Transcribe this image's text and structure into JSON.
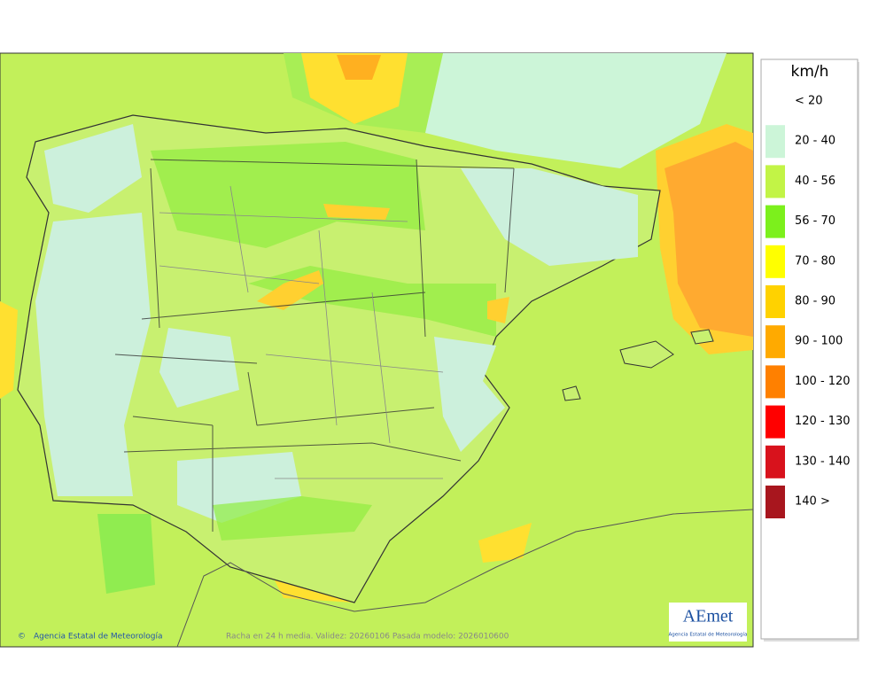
{
  "legend": {
    "unit": "km/h",
    "entries": [
      {
        "label": "< 20"
      },
      {
        "label": "20 - 40",
        "color": "#ccf5d8"
      },
      {
        "label": "40 - 56",
        "color": "#c2f446"
      },
      {
        "label": "56 - 70",
        "color": "#7cf01c"
      },
      {
        "label": "70 - 80",
        "color": "#ffff00"
      },
      {
        "label": "80 - 90",
        "color": "#ffd200"
      },
      {
        "label": "90 - 100",
        "color": "#ffaa00"
      },
      {
        "label": "100 - 120",
        "color": "#ff8000"
      },
      {
        "label": "120 - 130",
        "color": "#ff0000"
      },
      {
        "label": "130 - 140",
        "color": "#d8121c"
      },
      {
        "label": "140 >",
        "color": "#a8161e"
      }
    ]
  },
  "footer": {
    "copyright": "©",
    "agency": "Agencia Estatal de Meteorología",
    "caption": "Racha en 24 h media. Validez: 20260106 Pasada modelo: 2026010600"
  },
  "logo": {
    "name": "AEmet",
    "subtitle": "Agencia Estatal de Meteorología"
  }
}
